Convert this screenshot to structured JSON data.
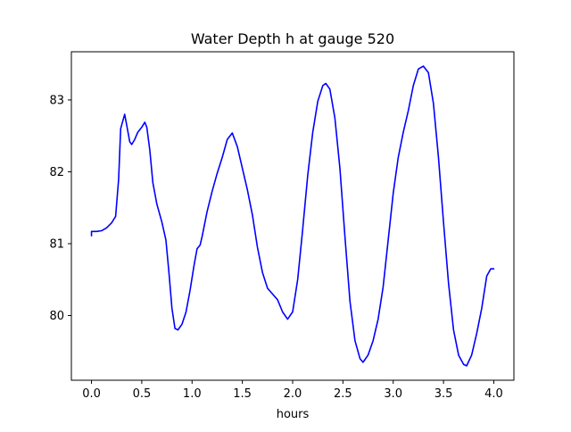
{
  "chart_data": {
    "type": "line",
    "title": "Water Depth h at gauge 520",
    "xlabel": "hours",
    "ylabel": "",
    "xlim": [
      -0.2,
      4.2
    ],
    "ylim": [
      79.1,
      83.67
    ],
    "xticks": [
      0.0,
      0.5,
      1.0,
      1.5,
      2.0,
      2.5,
      3.0,
      3.5,
      4.0
    ],
    "xtick_labels": [
      "0.0",
      "0.5",
      "1.0",
      "1.5",
      "2.0",
      "2.5",
      "3.0",
      "3.5",
      "4.0"
    ],
    "yticks": [
      80,
      81,
      82,
      83
    ],
    "ytick_labels": [
      "80",
      "81",
      "82",
      "83"
    ],
    "grid": false,
    "series": [
      {
        "color": "#0000ff",
        "points": [
          [
            0.0,
            81.11
          ],
          [
            0.0,
            81.17
          ],
          [
            0.05,
            81.17
          ],
          [
            0.1,
            81.18
          ],
          [
            0.15,
            81.22
          ],
          [
            0.2,
            81.29
          ],
          [
            0.24,
            81.38
          ],
          [
            0.27,
            81.9
          ],
          [
            0.29,
            82.6
          ],
          [
            0.33,
            82.8
          ],
          [
            0.35,
            82.65
          ],
          [
            0.38,
            82.42
          ],
          [
            0.4,
            82.38
          ],
          [
            0.43,
            82.45
          ],
          [
            0.46,
            82.55
          ],
          [
            0.5,
            82.62
          ],
          [
            0.53,
            82.69
          ],
          [
            0.55,
            82.62
          ],
          [
            0.58,
            82.3
          ],
          [
            0.61,
            81.85
          ],
          [
            0.65,
            81.55
          ],
          [
            0.7,
            81.3
          ],
          [
            0.74,
            81.05
          ],
          [
            0.77,
            80.6
          ],
          [
            0.8,
            80.1
          ],
          [
            0.83,
            79.82
          ],
          [
            0.86,
            79.8
          ],
          [
            0.9,
            79.88
          ],
          [
            0.94,
            80.05
          ],
          [
            0.98,
            80.35
          ],
          [
            1.02,
            80.7
          ],
          [
            1.05,
            80.93
          ],
          [
            1.08,
            80.98
          ],
          [
            1.1,
            81.1
          ],
          [
            1.15,
            81.45
          ],
          [
            1.2,
            81.73
          ],
          [
            1.25,
            81.98
          ],
          [
            1.3,
            82.2
          ],
          [
            1.35,
            82.45
          ],
          [
            1.4,
            82.54
          ],
          [
            1.45,
            82.35
          ],
          [
            1.5,
            82.05
          ],
          [
            1.55,
            81.75
          ],
          [
            1.6,
            81.4
          ],
          [
            1.65,
            80.95
          ],
          [
            1.7,
            80.6
          ],
          [
            1.75,
            80.38
          ],
          [
            1.8,
            80.3
          ],
          [
            1.85,
            80.22
          ],
          [
            1.9,
            80.05
          ],
          [
            1.95,
            79.95
          ],
          [
            2.0,
            80.05
          ],
          [
            2.05,
            80.5
          ],
          [
            2.1,
            81.2
          ],
          [
            2.15,
            81.95
          ],
          [
            2.2,
            82.55
          ],
          [
            2.25,
            82.98
          ],
          [
            2.3,
            83.2
          ],
          [
            2.33,
            83.23
          ],
          [
            2.37,
            83.15
          ],
          [
            2.42,
            82.75
          ],
          [
            2.47,
            82.05
          ],
          [
            2.52,
            81.1
          ],
          [
            2.57,
            80.2
          ],
          [
            2.62,
            79.65
          ],
          [
            2.67,
            79.4
          ],
          [
            2.7,
            79.35
          ],
          [
            2.75,
            79.45
          ],
          [
            2.8,
            79.65
          ],
          [
            2.85,
            79.95
          ],
          [
            2.9,
            80.4
          ],
          [
            2.95,
            81.05
          ],
          [
            3.0,
            81.7
          ],
          [
            3.05,
            82.2
          ],
          [
            3.1,
            82.55
          ],
          [
            3.15,
            82.85
          ],
          [
            3.2,
            83.2
          ],
          [
            3.25,
            83.43
          ],
          [
            3.3,
            83.47
          ],
          [
            3.35,
            83.38
          ],
          [
            3.4,
            82.95
          ],
          [
            3.45,
            82.2
          ],
          [
            3.5,
            81.3
          ],
          [
            3.55,
            80.45
          ],
          [
            3.6,
            79.8
          ],
          [
            3.65,
            79.45
          ],
          [
            3.7,
            79.32
          ],
          [
            3.73,
            79.3
          ],
          [
            3.78,
            79.45
          ],
          [
            3.83,
            79.75
          ],
          [
            3.88,
            80.1
          ],
          [
            3.93,
            80.55
          ],
          [
            3.97,
            80.65
          ],
          [
            4.0,
            80.65
          ]
        ]
      }
    ]
  }
}
